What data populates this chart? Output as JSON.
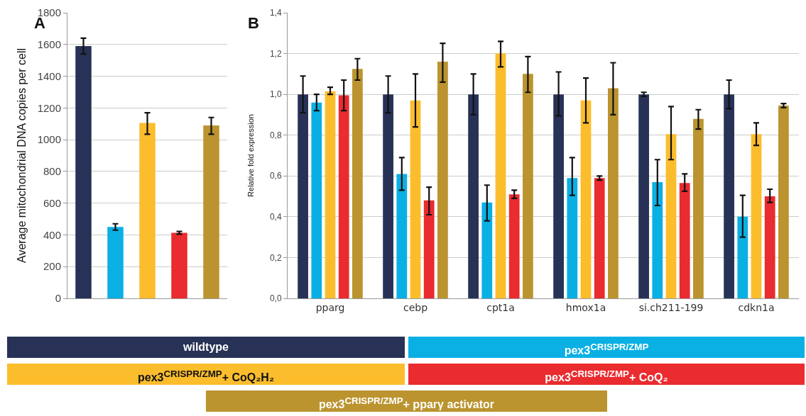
{
  "chart_data": [
    {
      "type": "bar",
      "title": "A",
      "ylabel": "Average mitochondrial DNA copies per cell",
      "categories": [
        null,
        null,
        null,
        null,
        null
      ],
      "values": [
        1590,
        450,
        1105,
        413,
        1090
      ],
      "colors": [
        "#283256",
        "#0ab0e4",
        "#fbbd2c",
        "#ea2b2f",
        "#bb942f"
      ],
      "errors": [
        [
          1540,
          1640
        ],
        [
          430,
          470
        ],
        [
          1035,
          1170
        ],
        [
          405,
          422
        ],
        [
          1035,
          1140
        ]
      ],
      "ylim": [
        0,
        1800
      ],
      "yticks": [
        0,
        200,
        400,
        600,
        800,
        1000,
        1200,
        1400,
        1600,
        1800
      ],
      "grid": "y",
      "tick_labels": "y"
    },
    {
      "type": "bar",
      "title": "B",
      "ylabel": "Relative fold expression",
      "categories": [
        "pparg",
        "cebp",
        "cpt1a",
        "hmox1a",
        "si.ch211-199",
        "cdkn1a"
      ],
      "series": [
        {
          "name": "wildtype",
          "color": "#283256",
          "values": [
            1.0,
            1.0,
            1.0,
            1.0,
            1.0,
            1.0
          ],
          "errors": [
            [
              0.91,
              1.09
            ],
            [
              0.91,
              1.09
            ],
            [
              0.9,
              1.1
            ],
            [
              0.895,
              1.11
            ],
            [
              0.99,
              1.01
            ],
            [
              0.93,
              1.07
            ]
          ]
        },
        {
          "name": "pex3$^{CRISPR/ZMP}$",
          "color": "#0ab0e4",
          "values": [
            0.96,
            0.61,
            0.47,
            0.59,
            0.57,
            0.4
          ],
          "errors": [
            [
              0.92,
              1.0
            ],
            [
              0.53,
              0.69
            ],
            [
              0.38,
              0.555
            ],
            [
              0.505,
              0.69
            ],
            [
              0.455,
              0.68
            ],
            [
              0.3,
              0.505
            ]
          ]
        },
        {
          "name": "pex3$^{CRISPR/ZMP}$+ CoQ₂H₂",
          "color": "#fbbd2c",
          "values": [
            1.015,
            0.97,
            1.2,
            0.97,
            0.805,
            0.805
          ],
          "errors": [
            [
              1.0,
              1.035
            ],
            [
              0.84,
              1.1
            ],
            [
              1.135,
              1.26
            ],
            [
              0.86,
              1.08
            ],
            [
              0.68,
              0.94
            ],
            [
              0.75,
              0.86
            ]
          ]
        },
        {
          "name": "pex3$^{CRISPR/ZMP}$+ CoQ₂",
          "color": "#ea2b2f",
          "values": [
            0.995,
            0.48,
            0.51,
            0.59,
            0.565,
            0.5
          ],
          "errors": [
            [
              0.92,
              1.07
            ],
            [
              0.41,
              0.545
            ],
            [
              0.49,
              0.53
            ],
            [
              0.58,
              0.6
            ],
            [
              0.525,
              0.61
            ],
            [
              0.47,
              0.535
            ]
          ]
        },
        {
          "name": "pex3$^{CRISPR/ZMP}$+ pparγ activator",
          "color": "#bb942f",
          "values": [
            1.125,
            1.16,
            1.1,
            1.03,
            0.88,
            0.945
          ],
          "errors": [
            [
              1.07,
              1.175
            ],
            [
              1.06,
              1.25
            ],
            [
              1.01,
              1.185
            ],
            [
              0.9,
              1.155
            ],
            [
              0.83,
              0.925
            ],
            [
              0.935,
              0.955
            ]
          ]
        }
      ],
      "ylim": [
        0,
        1.4
      ],
      "yticks": [
        {
          "value": 0,
          "label": "0,0"
        },
        {
          "value": 0.2,
          "label": "0,2"
        },
        {
          "value": 0.4,
          "label": "0,4"
        },
        {
          "value": 0.6,
          "label": "0,6"
        },
        {
          "value": 0.8,
          "label": "0,8"
        },
        {
          "value": 1.0,
          "label": "1,0"
        },
        {
          "value": 1.2,
          "label": "1,2"
        },
        {
          "value": 1.4,
          "label": "1,4"
        }
      ],
      "grid": "y",
      "legend": "bottom"
    }
  ]
}
